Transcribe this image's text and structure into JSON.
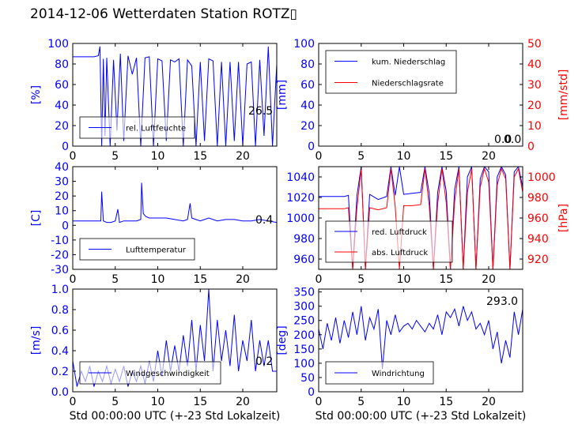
{
  "figure": {
    "title": "2014-12-06 Wetterdaten Station ROTZ▯"
  },
  "colors": {
    "primary": "#0000ff",
    "secondary": "#ff0000",
    "axis": "#000000"
  },
  "chart_data": [
    {
      "id": "humidity",
      "type": "line",
      "xlim": [
        0,
        24
      ],
      "ylim": [
        0,
        100
      ],
      "xticks": [
        0,
        5,
        10,
        15,
        20
      ],
      "yticks": [
        0,
        20,
        40,
        60,
        80,
        100
      ],
      "xlabel": "",
      "ylabel": "[%]",
      "series": [
        {
          "name": "rel. Luftfeuchte",
          "color": "#0000ff",
          "x": [
            0,
            0.5,
            1,
            1.5,
            2,
            2.5,
            3,
            3.2,
            3.4,
            3.6,
            3.8,
            4,
            4.4,
            4.8,
            5.2,
            5.6,
            6,
            6.5,
            7,
            7.5,
            8,
            8.5,
            9,
            9.5,
            10,
            10.5,
            11,
            11.5,
            12,
            12.5,
            13,
            13.5,
            14,
            14.5,
            15,
            15.5,
            16,
            16.5,
            17,
            17.5,
            18,
            18.5,
            19,
            19.5,
            20,
            20.5,
            21,
            21.5,
            22,
            22.5,
            23,
            23.5,
            24
          ],
          "y": [
            87,
            87,
            87,
            87,
            87,
            87,
            88,
            97,
            0,
            85,
            10,
            86,
            0,
            84,
            15,
            90,
            5,
            88,
            70,
            86,
            0,
            86,
            87,
            0,
            85,
            83,
            5,
            84,
            82,
            85,
            0,
            84,
            78,
            0,
            82,
            5,
            85,
            83,
            0,
            82,
            0,
            82,
            5,
            82,
            0,
            80,
            82,
            0,
            84,
            10,
            97,
            0,
            80
          ]
        }
      ],
      "legend": "lower-left",
      "annotation": "26.5"
    },
    {
      "id": "precip",
      "type": "line",
      "xlim": [
        0,
        24
      ],
      "ylim": [
        0,
        100
      ],
      "ylim_right": [
        0,
        50
      ],
      "xticks": [
        0,
        5,
        10,
        15,
        20
      ],
      "yticks": [
        0,
        20,
        40,
        60,
        80,
        100
      ],
      "yticks_right": [
        0,
        10,
        20,
        30,
        40,
        50
      ],
      "xlabel": "",
      "ylabel": "[mm]",
      "ylabel_right": "[mm/std]",
      "series": [
        {
          "name": "kum. Niederschlag",
          "color": "#0000ff",
          "axis": "left",
          "x": [
            0,
            24
          ],
          "y": [
            0,
            0
          ]
        },
        {
          "name": "Niederschlagsrate",
          "color": "#ff0000",
          "axis": "right",
          "x": [
            0,
            24
          ],
          "y": [
            0,
            0
          ]
        }
      ],
      "legend": "upper-left",
      "annotation": "0.0",
      "annotation2": "0.0"
    },
    {
      "id": "temperature",
      "type": "line",
      "xlim": [
        0,
        24
      ],
      "ylim": [
        -30,
        40
      ],
      "xticks": [
        0,
        5,
        10,
        15,
        20
      ],
      "yticks": [
        -30,
        -20,
        -10,
        0,
        10,
        20,
        30,
        40
      ],
      "xlabel": "",
      "ylabel": "[C]",
      "series": [
        {
          "name": "Lufttemperatur",
          "color": "#0000ff",
          "x": [
            0,
            1,
            2,
            3,
            3.3,
            3.4,
            3.6,
            4,
            4.5,
            5,
            5.3,
            5.5,
            6,
            7,
            7.5,
            8,
            8.1,
            8.3,
            8.6,
            9,
            10,
            11,
            12,
            13,
            13.5,
            13.8,
            14,
            14.5,
            15,
            16,
            17,
            18,
            19,
            20,
            21,
            22,
            23,
            24
          ],
          "y": [
            3,
            3,
            3,
            3,
            3,
            23,
            3,
            2,
            2,
            3,
            11,
            2,
            3,
            3,
            3,
            4,
            29,
            8,
            6,
            5,
            5,
            5,
            4,
            3,
            4,
            15,
            5,
            4,
            3,
            5,
            3,
            4,
            4,
            3,
            3,
            4,
            3,
            2
          ]
        }
      ],
      "legend": "lower-left",
      "annotation": "0.4"
    },
    {
      "id": "pressure",
      "type": "line",
      "xlim": [
        0,
        24
      ],
      "ylim": [
        950,
        1050
      ],
      "ylim_right": [
        910,
        1010
      ],
      "xticks": [
        0,
        5,
        10,
        15,
        20
      ],
      "yticks": [
        960,
        980,
        1000,
        1020,
        1040
      ],
      "yticks_right": [
        920,
        940,
        960,
        980,
        1000
      ],
      "xlabel": "",
      "ylabel": "",
      "ylabel_right": "[hPa]",
      "series": [
        {
          "name": "red. Luftdruck",
          "color": "#0000ff",
          "axis": "left",
          "x": [
            0,
            3,
            3.5,
            4,
            4.5,
            5,
            5.5,
            6,
            7,
            8,
            8.5,
            9,
            9.5,
            10,
            11,
            12,
            12.5,
            13,
            13.5,
            14,
            14.5,
            15,
            15.5,
            16,
            16.5,
            17,
            17.5,
            18,
            18.5,
            19,
            19.5,
            20,
            20.5,
            21,
            21.5,
            22,
            22.5,
            23,
            23.5,
            24
          ],
          "y": [
            1021,
            1021,
            1022,
            950,
            1022,
            1050,
            950,
            1023,
            1018,
            1021,
            1050,
            1022,
            1050,
            1023,
            1024,
            1025,
            1050,
            1024,
            950,
            1025,
            1050,
            1026,
            950,
            1028,
            1050,
            950,
            1040,
            1050,
            950,
            1038,
            1050,
            1045,
            950,
            1040,
            1050,
            1042,
            950,
            1045,
            1050,
            1030
          ]
        },
        {
          "name": "abs. Luftdruck",
          "color": "#ff0000",
          "axis": "right",
          "x": [
            0,
            3,
            3.5,
            4,
            4.5,
            5,
            5.5,
            6,
            7,
            8,
            8.5,
            9,
            9.5,
            10,
            11,
            12,
            12.5,
            13,
            13.5,
            14,
            14.5,
            15,
            15.5,
            16,
            16.5,
            17,
            17.5,
            18,
            18.5,
            19,
            19.5,
            20,
            20.5,
            21,
            21.5,
            22,
            22.5,
            23,
            23.5,
            24
          ],
          "y": [
            969,
            969,
            970,
            910,
            970,
            1008,
            910,
            970,
            968,
            970,
            1008,
            971,
            910,
            972,
            972,
            973,
            1008,
            972,
            910,
            974,
            1008,
            975,
            910,
            976,
            1008,
            910,
            985,
            1008,
            910,
            990,
            1008,
            995,
            910,
            992,
            1008,
            998,
            910,
            1000,
            1008,
            985
          ]
        }
      ],
      "legend": "lower-left"
    },
    {
      "id": "windspeed",
      "type": "line",
      "xlim": [
        0,
        24
      ],
      "ylim": [
        0,
        1.0
      ],
      "xticks": [
        0,
        5,
        10,
        15,
        20
      ],
      "yticks": [
        0.0,
        0.2,
        0.4,
        0.6,
        0.8,
        1.0
      ],
      "xlabel": "Std 00:00:00 UTC (+-23 Std Lokalzeit)",
      "ylabel": "[m/s]",
      "series": [
        {
          "name": "Windgeschwindigkeit",
          "color": "#0000ff",
          "x": [
            0,
            0.5,
            1,
            1.5,
            2,
            2.5,
            3,
            3.5,
            4,
            4.5,
            5,
            5.5,
            6,
            6.5,
            7,
            7.5,
            8,
            8.5,
            9,
            9.5,
            10,
            10.5,
            11,
            11.5,
            12,
            12.5,
            13,
            13.5,
            14,
            14.5,
            15,
            15.5,
            16,
            16.5,
            17,
            17.5,
            18,
            18.5,
            19,
            19.5,
            20,
            20.5,
            21,
            21.5,
            22,
            22.5,
            23,
            23.5,
            24
          ],
          "y": [
            0.3,
            0.05,
            0.2,
            0.1,
            0.25,
            0.05,
            0.2,
            0.1,
            0.25,
            0.08,
            0.22,
            0.1,
            0.25,
            0.05,
            0.2,
            0.1,
            0.25,
            0.08,
            0.3,
            0.1,
            0.4,
            0.15,
            0.5,
            0.2,
            0.45,
            0.2,
            0.55,
            0.25,
            0.7,
            0.2,
            0.65,
            0.3,
            1.0,
            0.2,
            0.7,
            0.3,
            0.6,
            0.25,
            0.75,
            0.2,
            0.5,
            0.3,
            0.7,
            0.2,
            0.5,
            0.25,
            0.5,
            0.2,
            0.2
          ]
        }
      ],
      "legend": "lower-center",
      "annotation": "0.2"
    },
    {
      "id": "winddir",
      "type": "line",
      "xlim": [
        0,
        24
      ],
      "ylim": [
        0,
        360
      ],
      "xticks": [
        0,
        5,
        10,
        15,
        20
      ],
      "yticks": [
        0,
        50,
        100,
        150,
        200,
        250,
        300,
        350
      ],
      "xlabel": "Std 00:00:00 UTC (+-23 Std Lokalzeit)",
      "ylabel": "[deg]",
      "series": [
        {
          "name": "Windrichtung",
          "color": "#0000ff",
          "x": [
            0,
            0.5,
            1,
            1.5,
            2,
            2.5,
            3,
            3.5,
            4,
            4.5,
            5,
            5.5,
            6,
            6.5,
            7,
            7.5,
            8,
            8.5,
            9,
            9.5,
            10,
            10.5,
            11,
            11.5,
            12,
            12.5,
            13,
            13.5,
            14,
            14.5,
            15,
            15.5,
            16,
            16.5,
            17,
            17.5,
            18,
            18.5,
            19,
            19.5,
            20,
            20.5,
            21,
            21.5,
            22,
            22.5,
            23,
            23.5,
            24
          ],
          "y": [
            220,
            150,
            240,
            180,
            260,
            170,
            250,
            190,
            280,
            200,
            300,
            180,
            260,
            220,
            290,
            80,
            250,
            200,
            270,
            210,
            230,
            240,
            220,
            250,
            230,
            210,
            240,
            220,
            270,
            200,
            280,
            260,
            290,
            230,
            300,
            250,
            280,
            220,
            240,
            200,
            250,
            150,
            210,
            100,
            180,
            120,
            280,
            200,
            290
          ]
        }
      ],
      "legend": "lower-left",
      "annotation": "293.0"
    }
  ]
}
